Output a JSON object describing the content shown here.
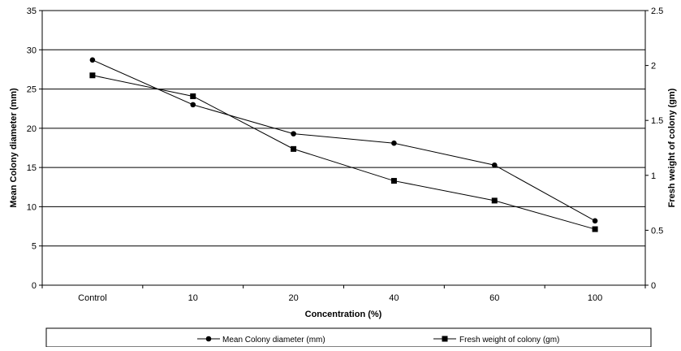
{
  "chart_data": {
    "type": "line",
    "title": "",
    "xlabel": "Concentration (%)",
    "ylabel": "Mean Colony diameter (mm)",
    "y2label": "Fresh weight of colony (gm)",
    "categories": [
      "Control",
      "10",
      "20",
      "40",
      "60",
      "100"
    ],
    "ylim": [
      0,
      35
    ],
    "y_ticks": [
      "0",
      "5",
      "10",
      "15",
      "20",
      "25",
      "30",
      "35"
    ],
    "y2lim": [
      0,
      2.5
    ],
    "y2_ticks": [
      "0",
      "0.5",
      "1",
      "1.5",
      "2",
      "2.5"
    ],
    "grid": true,
    "legend_position": "bottom",
    "series": [
      {
        "name": "Mean Colony diameter (mm)",
        "axis": "left",
        "marker": "circle",
        "values": [
          28.7,
          23.0,
          19.3,
          18.1,
          15.3,
          8.2
        ]
      },
      {
        "name": "Fresh weight of colony (gm)",
        "axis": "right",
        "marker": "square",
        "values": [
          1.91,
          1.72,
          1.24,
          0.95,
          0.77,
          0.51
        ]
      }
    ],
    "colors": {
      "line": "#000000",
      "grid": "#000000",
      "background": "#ffffff"
    }
  }
}
